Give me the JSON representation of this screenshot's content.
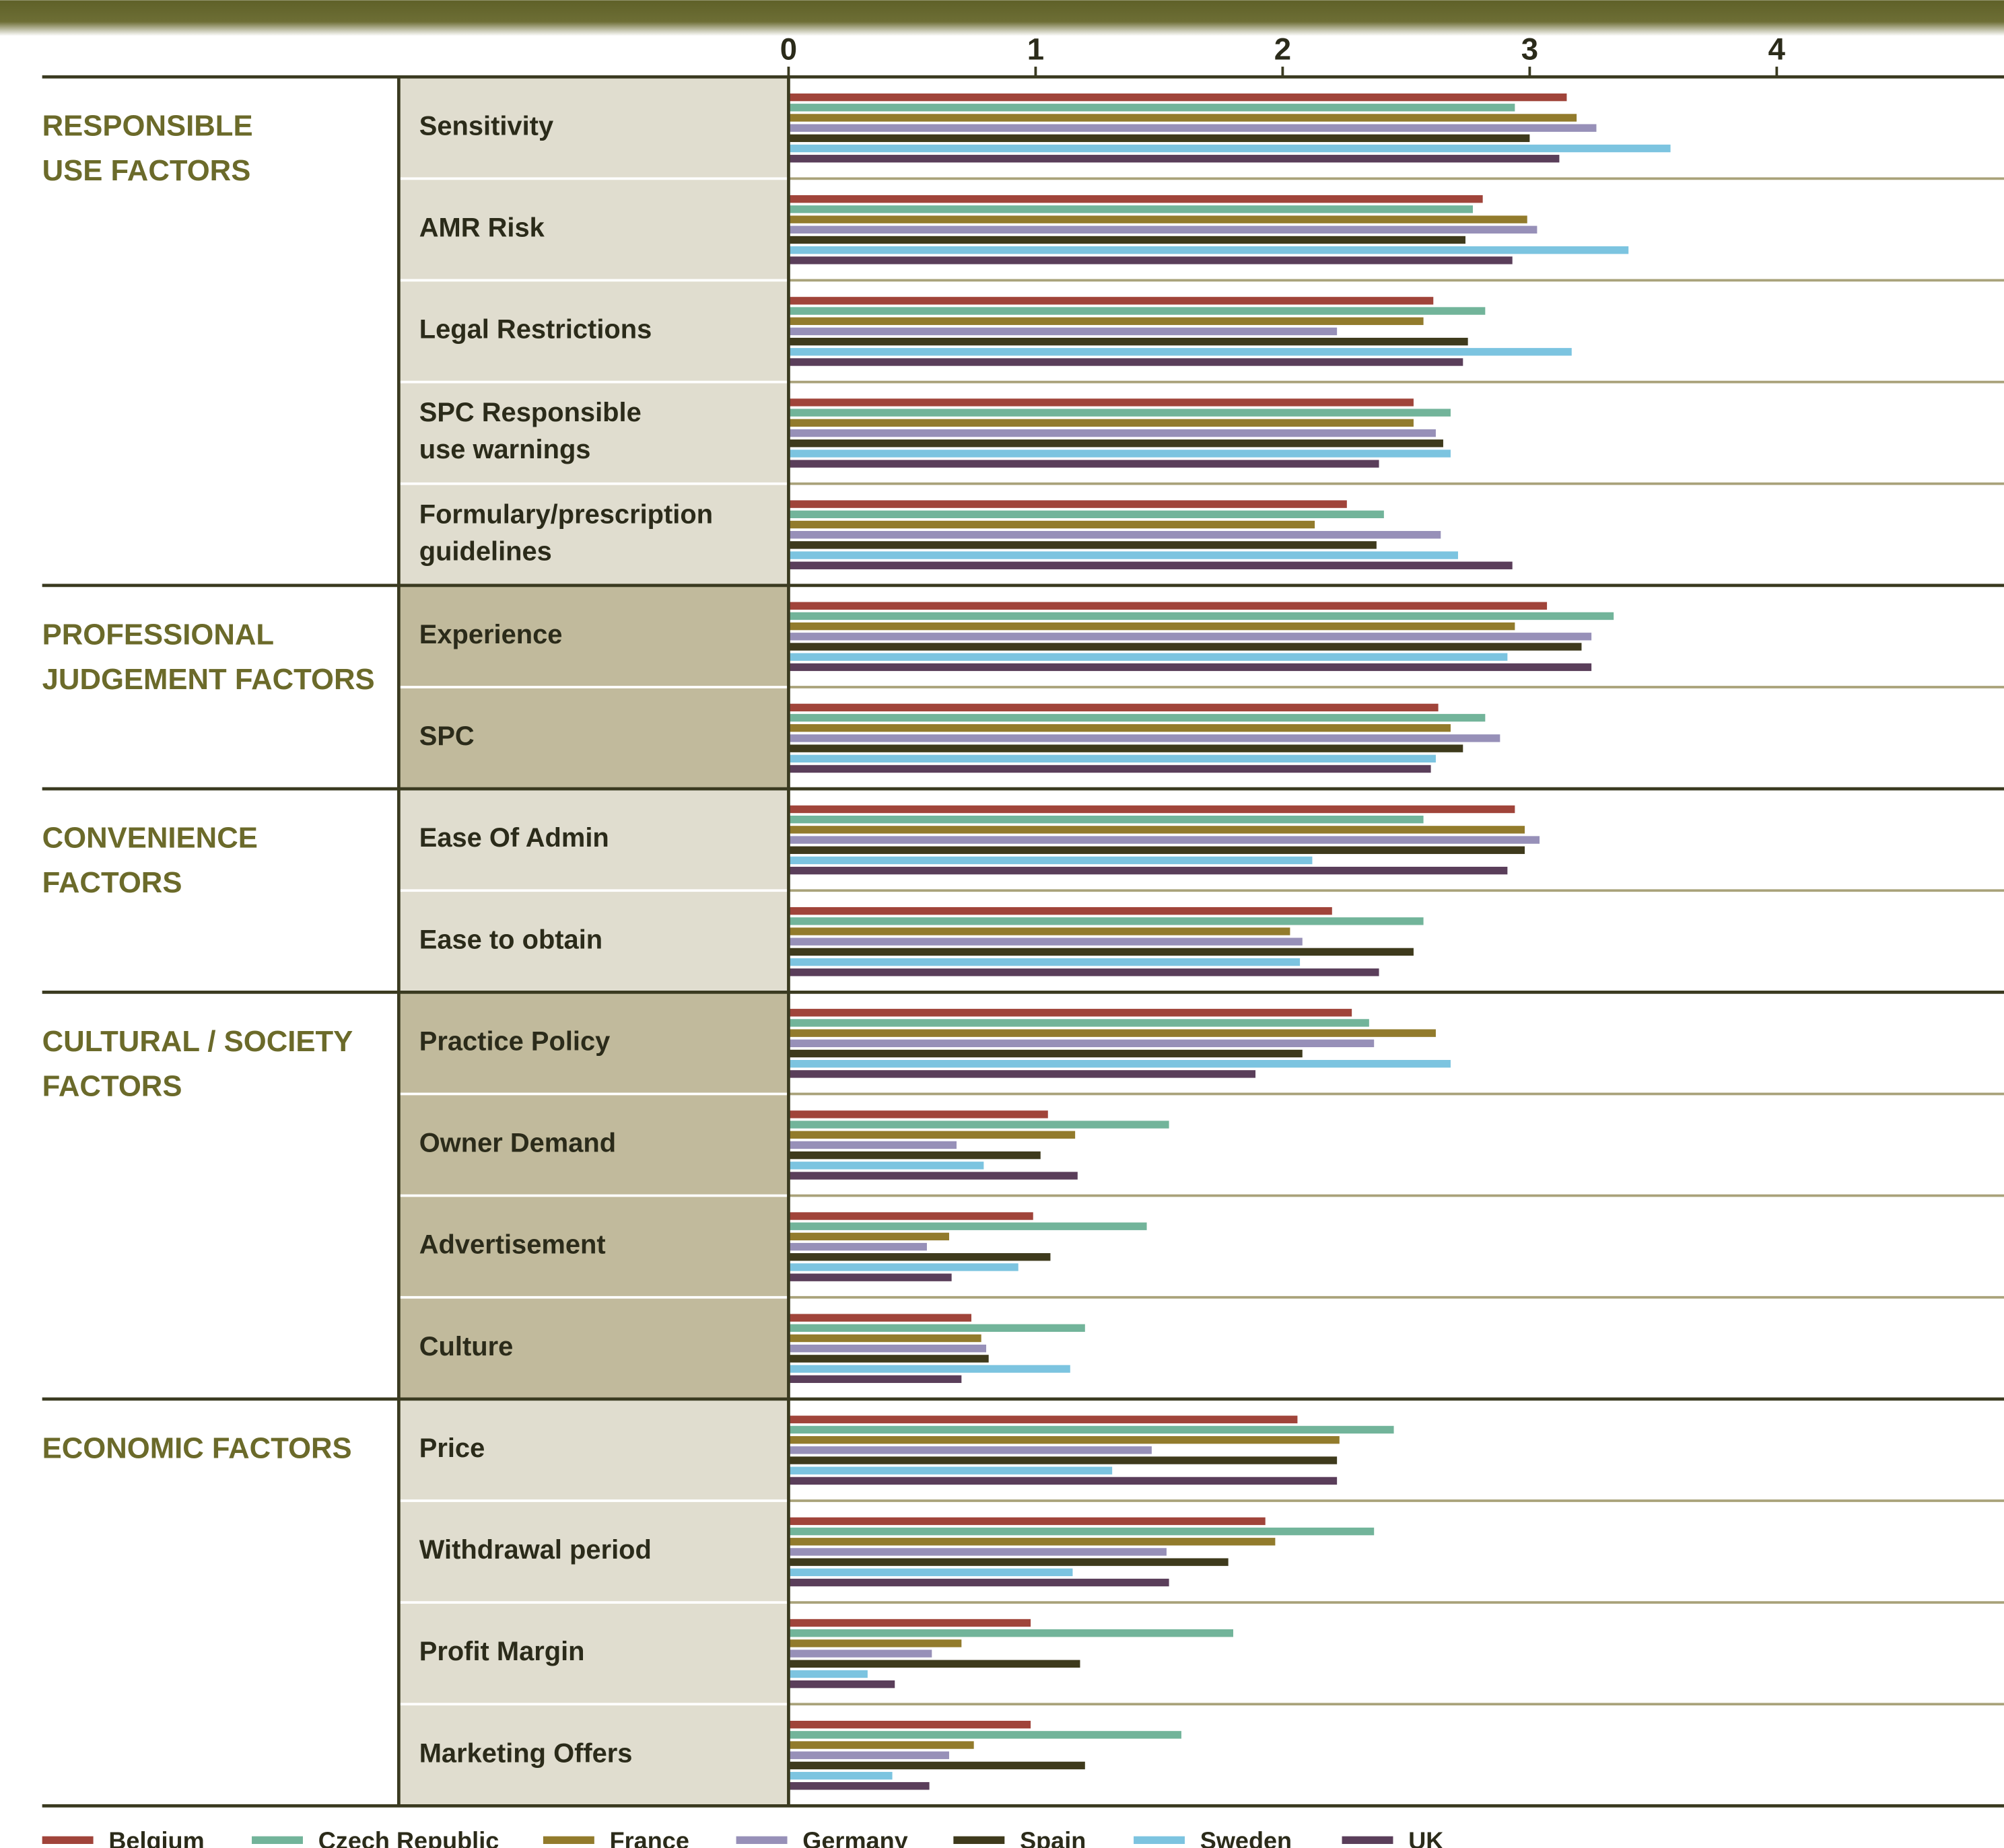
{
  "chart_data": {
    "type": "bar",
    "orientation": "horizontal",
    "xlim": [
      0,
      4.92
    ],
    "xticks": [
      0,
      1,
      2,
      3,
      4
    ],
    "groups": [
      {
        "label": [
          "RESPONSIBLE",
          "USE FACTORS"
        ],
        "fill": "#e0ddcf",
        "categories": [
          [
            "Sensitivity"
          ],
          [
            "AMR Risk"
          ],
          [
            "Legal Restrictions"
          ],
          [
            "SPC Responsible",
            "use warnings"
          ],
          [
            "Formulary/prescription",
            "guidelines"
          ]
        ]
      },
      {
        "label": [
          "PROFESSIONAL",
          "JUDGEMENT FACTORS"
        ],
        "fill": "#c1ba9c",
        "categories": [
          [
            "Experience"
          ],
          [
            "SPC"
          ]
        ]
      },
      {
        "label": [
          "CONVENIENCE",
          "FACTORS"
        ],
        "fill": "#e0ddcf",
        "categories": [
          [
            "Ease Of Admin"
          ],
          [
            "Ease to obtain"
          ]
        ]
      },
      {
        "label": [
          "CULTURAL / SOCIETY",
          "FACTORS"
        ],
        "fill": "#c1ba9c",
        "categories": [
          [
            "Practice Policy"
          ],
          [
            "Owner Demand"
          ],
          [
            "Advertisement"
          ],
          [
            "Culture"
          ]
        ]
      },
      {
        "label": [
          "ECONOMIC FACTORS"
        ],
        "fill": "#e0ddcf",
        "categories": [
          [
            "Price"
          ],
          [
            "Withdrawal period"
          ],
          [
            "Profit Margin"
          ],
          [
            "Marketing Offers"
          ]
        ]
      }
    ],
    "series": [
      {
        "name": "Belgium",
        "color": "#a0443a",
        "values": [
          3.15,
          2.81,
          2.61,
          2.53,
          2.26,
          3.07,
          2.63,
          2.94,
          2.2,
          2.28,
          1.05,
          0.99,
          0.74,
          2.06,
          1.93,
          0.98,
          0.98
        ]
      },
      {
        "name": "Czech Republic",
        "color": "#72b49a",
        "values": [
          2.94,
          2.77,
          2.82,
          2.68,
          2.41,
          3.34,
          2.82,
          2.57,
          2.57,
          2.35,
          1.54,
          1.45,
          1.2,
          2.45,
          2.37,
          1.8,
          1.59
        ]
      },
      {
        "name": "France",
        "color": "#927b2c",
        "values": [
          3.19,
          2.99,
          2.57,
          2.53,
          2.13,
          2.94,
          2.68,
          2.98,
          2.03,
          2.62,
          1.16,
          0.65,
          0.78,
          2.23,
          1.97,
          0.7,
          0.75
        ]
      },
      {
        "name": "Germany",
        "color": "#9790b8",
        "values": [
          3.27,
          3.03,
          2.22,
          2.62,
          2.64,
          3.25,
          2.88,
          3.04,
          2.08,
          2.37,
          0.68,
          0.56,
          0.8,
          1.47,
          1.53,
          0.58,
          0.65
        ]
      },
      {
        "name": "Spain",
        "color": "#3e3a1c",
        "values": [
          3.0,
          2.74,
          2.75,
          2.65,
          2.38,
          3.21,
          2.73,
          2.98,
          2.53,
          2.08,
          1.02,
          1.06,
          0.81,
          2.22,
          1.78,
          1.18,
          1.2
        ]
      },
      {
        "name": "Sweden",
        "color": "#7cc4e0",
        "values": [
          3.57,
          3.4,
          3.17,
          2.68,
          2.71,
          2.91,
          2.62,
          2.12,
          2.07,
          2.68,
          0.79,
          0.93,
          1.14,
          1.31,
          1.15,
          0.32,
          0.42
        ]
      },
      {
        "name": "UK",
        "color": "#5a3e5a",
        "values": [
          3.12,
          2.93,
          2.73,
          2.39,
          2.93,
          3.25,
          2.6,
          2.91,
          2.39,
          1.89,
          1.17,
          0.66,
          0.7,
          2.22,
          1.54,
          0.43,
          0.57
        ]
      }
    ]
  }
}
